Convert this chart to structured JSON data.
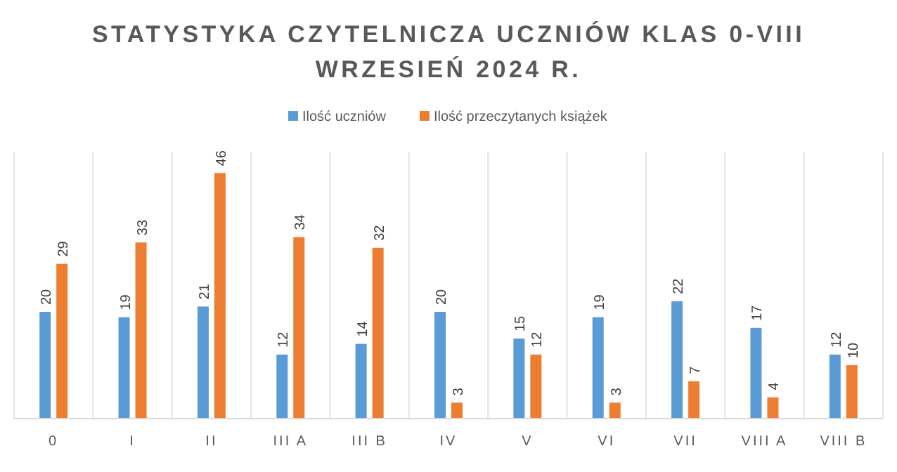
{
  "chart_data": {
    "type": "bar",
    "title": "STATYSTYKA CZYTELNICZA UCZNIÓW KLAS 0-VIII\nWRZESIEŃ 2024 R.",
    "categories": [
      "0",
      "I",
      "II",
      "III A",
      "III B",
      "IV",
      "V",
      "VI",
      "VII",
      "VIII A",
      "VIII B"
    ],
    "series": [
      {
        "name": "Ilość uczniów",
        "color": "#5b9bd5",
        "values": [
          20,
          19,
          21,
          12,
          14,
          20,
          15,
          19,
          22,
          17,
          12
        ]
      },
      {
        "name": "Ilość przeczytanych książek",
        "color": "#ed7d31",
        "values": [
          29,
          33,
          46,
          34,
          32,
          3,
          12,
          3,
          7,
          4,
          10
        ]
      }
    ],
    "ylim": [
      0,
      50
    ],
    "tick_labels": "x",
    "data_labels": true,
    "legend": "top",
    "grid": "x"
  }
}
